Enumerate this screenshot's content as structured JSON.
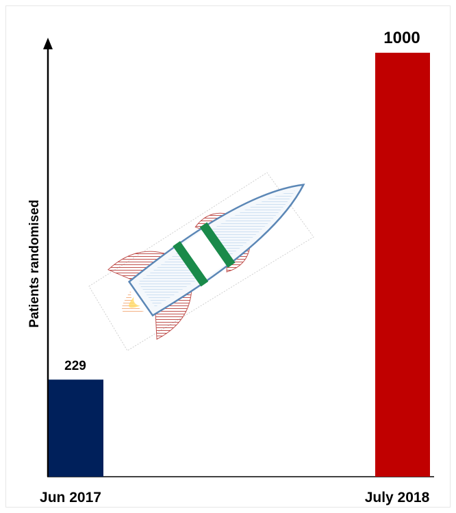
{
  "chart_data": {
    "type": "bar",
    "categories": [
      "Jun 2017",
      "July 2018"
    ],
    "values": [
      229,
      1000
    ],
    "data_labels": [
      "229",
      "1000"
    ],
    "ylabel": "Patients randomised",
    "xlabel": "",
    "title": "",
    "ylim": [
      0,
      1000
    ],
    "colors": [
      "#00205b",
      "#c00000"
    ],
    "grid": false
  },
  "decoration": {
    "icon": "rocket-icon"
  }
}
